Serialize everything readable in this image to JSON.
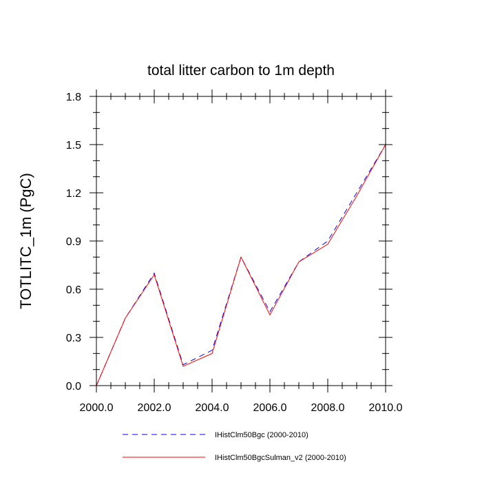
{
  "chart_data": {
    "type": "line",
    "title": "total litter carbon to 1m depth",
    "xlabel": "",
    "ylabel": "TOTLITC_1m  (PgC)",
    "xlim": [
      2000,
      2010
    ],
    "ylim": [
      0,
      1.8
    ],
    "x_ticks": [
      2000,
      2002,
      2004,
      2006,
      2008,
      2010
    ],
    "x_tick_labels": [
      "2000.0",
      "2002.0",
      "2004.0",
      "2006.0",
      "2008.0",
      "2010.0"
    ],
    "y_ticks": [
      0,
      0.3,
      0.6,
      0.9,
      1.2,
      1.5,
      1.8
    ],
    "y_tick_labels": [
      "0.0",
      "0.3",
      "0.6",
      "0.9",
      "1.2",
      "1.5",
      "1.8"
    ],
    "x": [
      2000,
      2001,
      2002,
      2003,
      2004,
      2005,
      2006,
      2007,
      2008,
      2009,
      2010
    ],
    "series": [
      {
        "name": "IHistClm50Bgc (2000-2010)",
        "color": "#0000ff",
        "dash": "dashed",
        "values": [
          0.0,
          0.42,
          0.7,
          0.13,
          0.22,
          0.8,
          0.46,
          0.77,
          0.9,
          1.2,
          1.5
        ]
      },
      {
        "name": "IHistClm50BgcSulman_v2 (2000-2010)",
        "color": "#ff0000",
        "dash": "solid",
        "values": [
          0.0,
          0.42,
          0.69,
          0.12,
          0.2,
          0.8,
          0.44,
          0.77,
          0.88,
          1.18,
          1.5
        ]
      }
    ],
    "grid": false,
    "legend_position": "bottom"
  }
}
